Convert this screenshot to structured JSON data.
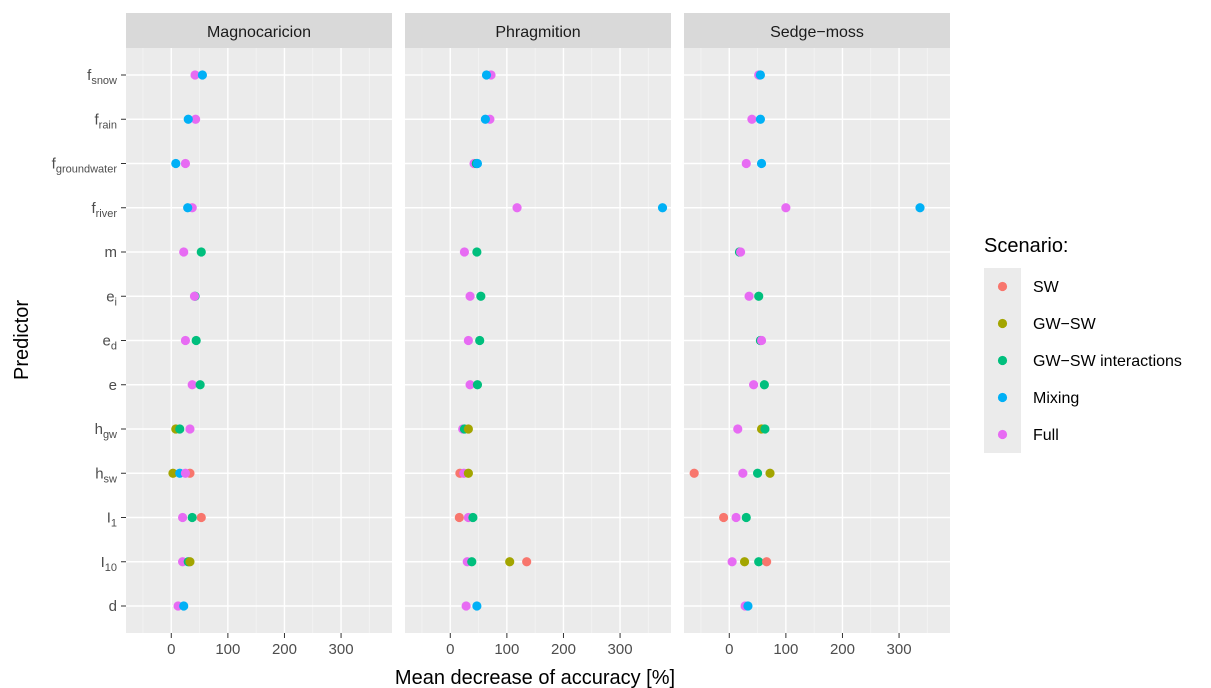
{
  "chart_data": {
    "type": "scatter",
    "xlabel": "Mean decrease of accuracy [%]",
    "ylabel": "Predictor",
    "xlim": [
      -80,
      390
    ],
    "x_ticks": [
      0,
      100,
      200,
      300
    ],
    "grid": true,
    "legend": {
      "title": "Scenario:",
      "position": "right"
    },
    "predictors": [
      {
        "base": "f",
        "sub": "snow"
      },
      {
        "base": "f",
        "sub": "rain"
      },
      {
        "base": "f",
        "sub": "groundwater"
      },
      {
        "base": "f",
        "sub": "river"
      },
      {
        "base": "m",
        "sub": ""
      },
      {
        "base": "e",
        "sub": "i"
      },
      {
        "base": "e",
        "sub": "d"
      },
      {
        "base": "e",
        "sub": ""
      },
      {
        "base": "h",
        "sub": "gw"
      },
      {
        "base": "h",
        "sub": "sw"
      },
      {
        "base": "I",
        "sub": "1"
      },
      {
        "base": "I",
        "sub": "10"
      },
      {
        "base": "d",
        "sub": ""
      }
    ],
    "series": [
      {
        "name": "SW",
        "color": "#F8766D"
      },
      {
        "name": "GW−SW",
        "color": "#A3A500"
      },
      {
        "name": "GW−SW interactions",
        "color": "#00BF7D"
      },
      {
        "name": "Mixing",
        "color": "#00B0F6"
      },
      {
        "name": "Full",
        "color": "#E76BF3"
      }
    ],
    "panels": [
      {
        "name": "Magnocaricion",
        "points": [
          {
            "p": 0,
            "s": "Full",
            "x": 42
          },
          {
            "p": 0,
            "s": "Mixing",
            "x": 55
          },
          {
            "p": 1,
            "s": "Full",
            "x": 43
          },
          {
            "p": 1,
            "s": "Mixing",
            "x": 30
          },
          {
            "p": 2,
            "s": "Full",
            "x": 25
          },
          {
            "p": 2,
            "s": "Mixing",
            "x": 8
          },
          {
            "p": 3,
            "s": "Full",
            "x": 37
          },
          {
            "p": 3,
            "s": "Mixing",
            "x": 29
          },
          {
            "p": 4,
            "s": "Full",
            "x": 22
          },
          {
            "p": 4,
            "s": "GW−SW interactions",
            "x": 53
          },
          {
            "p": 5,
            "s": "GW−SW interactions",
            "x": 42
          },
          {
            "p": 5,
            "s": "Full",
            "x": 41
          },
          {
            "p": 6,
            "s": "Full",
            "x": 25
          },
          {
            "p": 6,
            "s": "GW−SW interactions",
            "x": 44
          },
          {
            "p": 7,
            "s": "Full",
            "x": 37
          },
          {
            "p": 7,
            "s": "GW−SW interactions",
            "x": 51
          },
          {
            "p": 8,
            "s": "GW−SW",
            "x": 8
          },
          {
            "p": 8,
            "s": "GW−SW interactions",
            "x": 15
          },
          {
            "p": 8,
            "s": "Full",
            "x": 33
          },
          {
            "p": 9,
            "s": "GW−SW",
            "x": 3
          },
          {
            "p": 9,
            "s": "Mixing",
            "x": 15
          },
          {
            "p": 9,
            "s": "SW",
            "x": 33
          },
          {
            "p": 9,
            "s": "Full",
            "x": 25
          },
          {
            "p": 10,
            "s": "SW",
            "x": 53
          },
          {
            "p": 10,
            "s": "GW−SW interactions",
            "x": 37
          },
          {
            "p": 10,
            "s": "Full",
            "x": 20
          },
          {
            "p": 11,
            "s": "Full",
            "x": 20
          },
          {
            "p": 11,
            "s": "GW−SW interactions",
            "x": 30
          },
          {
            "p": 11,
            "s": "GW−SW",
            "x": 33
          },
          {
            "p": 12,
            "s": "Full",
            "x": 12
          },
          {
            "p": 12,
            "s": "Mixing",
            "x": 22
          }
        ]
      },
      {
        "name": "Phragmition",
        "points": [
          {
            "p": 0,
            "s": "Full",
            "x": 72
          },
          {
            "p": 0,
            "s": "Mixing",
            "x": 64
          },
          {
            "p": 1,
            "s": "Full",
            "x": 70
          },
          {
            "p": 1,
            "s": "Mixing",
            "x": 62
          },
          {
            "p": 2,
            "s": "Full",
            "x": 42
          },
          {
            "p": 2,
            "s": "GW−SW interactions",
            "x": 46
          },
          {
            "p": 2,
            "s": "Mixing",
            "x": 48
          },
          {
            "p": 3,
            "s": "Full",
            "x": 118
          },
          {
            "p": 3,
            "s": "Mixing",
            "x": 375
          },
          {
            "p": 4,
            "s": "Full",
            "x": 25
          },
          {
            "p": 4,
            "s": "GW−SW interactions",
            "x": 47
          },
          {
            "p": 5,
            "s": "Full",
            "x": 35
          },
          {
            "p": 5,
            "s": "GW−SW interactions",
            "x": 54
          },
          {
            "p": 6,
            "s": "Full",
            "x": 32
          },
          {
            "p": 6,
            "s": "GW−SW interactions",
            "x": 52
          },
          {
            "p": 7,
            "s": "Full",
            "x": 35
          },
          {
            "p": 7,
            "s": "GW−SW interactions",
            "x": 48
          },
          {
            "p": 8,
            "s": "Full",
            "x": 22
          },
          {
            "p": 8,
            "s": "GW−SW interactions",
            "x": 25
          },
          {
            "p": 8,
            "s": "GW−SW",
            "x": 32
          },
          {
            "p": 9,
            "s": "SW",
            "x": 17
          },
          {
            "p": 9,
            "s": "Full",
            "x": 24
          },
          {
            "p": 9,
            "s": "GW−SW",
            "x": 32
          },
          {
            "p": 10,
            "s": "SW",
            "x": 16
          },
          {
            "p": 10,
            "s": "Full",
            "x": 32
          },
          {
            "p": 10,
            "s": "GW−SW interactions",
            "x": 40
          },
          {
            "p": 11,
            "s": "Full",
            "x": 30
          },
          {
            "p": 11,
            "s": "GW−SW interactions",
            "x": 38
          },
          {
            "p": 11,
            "s": "GW−SW",
            "x": 105
          },
          {
            "p": 11,
            "s": "SW",
            "x": 135
          },
          {
            "p": 12,
            "s": "Full",
            "x": 28
          },
          {
            "p": 12,
            "s": "Mixing",
            "x": 47
          }
        ]
      },
      {
        "name": "Sedge−moss",
        "points": [
          {
            "p": 0,
            "s": "Full",
            "x": 52
          },
          {
            "p": 0,
            "s": "Mixing",
            "x": 55
          },
          {
            "p": 1,
            "s": "Full",
            "x": 40
          },
          {
            "p": 1,
            "s": "Mixing",
            "x": 55
          },
          {
            "p": 2,
            "s": "Full",
            "x": 30
          },
          {
            "p": 2,
            "s": "Mixing",
            "x": 57
          },
          {
            "p": 3,
            "s": "Full",
            "x": 100
          },
          {
            "p": 3,
            "s": "Mixing",
            "x": 337
          },
          {
            "p": 4,
            "s": "GW−SW interactions",
            "x": 18
          },
          {
            "p": 4,
            "s": "Full",
            "x": 20
          },
          {
            "p": 5,
            "s": "Full",
            "x": 35
          },
          {
            "p": 5,
            "s": "GW−SW interactions",
            "x": 52
          },
          {
            "p": 6,
            "s": "GW−SW interactions",
            "x": 55
          },
          {
            "p": 6,
            "s": "Full",
            "x": 57
          },
          {
            "p": 7,
            "s": "Full",
            "x": 43
          },
          {
            "p": 7,
            "s": "GW−SW interactions",
            "x": 62
          },
          {
            "p": 8,
            "s": "Full",
            "x": 15
          },
          {
            "p": 8,
            "s": "GW−SW",
            "x": 57
          },
          {
            "p": 8,
            "s": "GW−SW interactions",
            "x": 63
          },
          {
            "p": 9,
            "s": "SW",
            "x": -62
          },
          {
            "p": 9,
            "s": "Full",
            "x": 24
          },
          {
            "p": 9,
            "s": "GW−SW interactions",
            "x": 50
          },
          {
            "p": 9,
            "s": "GW−SW",
            "x": 72
          },
          {
            "p": 10,
            "s": "SW",
            "x": -10
          },
          {
            "p": 10,
            "s": "Full",
            "x": 12
          },
          {
            "p": 10,
            "s": "GW−SW interactions",
            "x": 30
          },
          {
            "p": 11,
            "s": "Full",
            "x": 5
          },
          {
            "p": 11,
            "s": "GW−SW",
            "x": 27
          },
          {
            "p": 11,
            "s": "GW−SW interactions",
            "x": 52
          },
          {
            "p": 11,
            "s": "SW",
            "x": 66
          },
          {
            "p": 12,
            "s": "Full",
            "x": 28
          },
          {
            "p": 12,
            "s": "Mixing",
            "x": 33
          }
        ]
      }
    ]
  }
}
